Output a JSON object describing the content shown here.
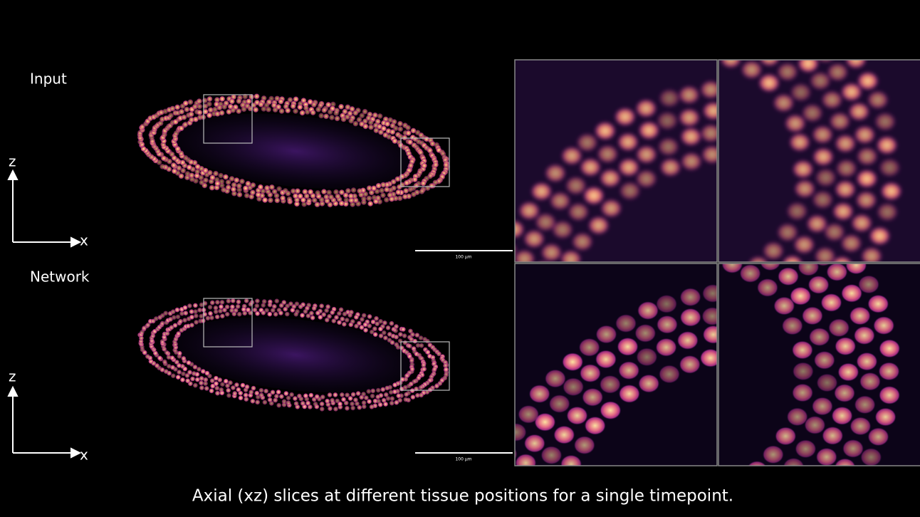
{
  "panels": [
    {
      "label": "Input",
      "axis_z": "z",
      "axis_x": "x",
      "scale_bar": "100 μm"
    },
    {
      "label": "Network",
      "axis_z": "z",
      "axis_x": "x",
      "scale_bar": "100 μm"
    }
  ],
  "caption": "Axial (xz) slices at different tissue positions for a single timepoint."
}
